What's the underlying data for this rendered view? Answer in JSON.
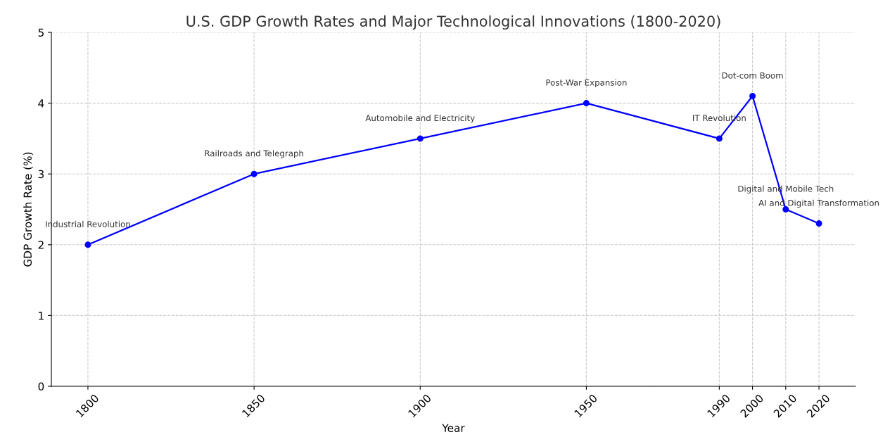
{
  "chart_data": {
    "type": "line",
    "title": "U.S. GDP Growth Rates and Major Technological Innovations (1800-2020)",
    "xlabel": "Year",
    "ylabel": "GDP Growth Rate (%)",
    "x": [
      1800,
      1850,
      1900,
      1950,
      1990,
      2000,
      2010,
      2020
    ],
    "series": [
      {
        "color": "#0000ff",
        "values": [
          2.0,
          3.0,
          3.5,
          4.0,
          3.5,
          4.1,
          2.5,
          2.3
        ]
      }
    ],
    "xlim": [
      1789,
      2031
    ],
    "ylim": [
      0,
      5
    ],
    "xticks": [
      1800,
      1850,
      1900,
      1950,
      1990,
      2000,
      2010,
      2020
    ],
    "yticks": [
      0,
      1,
      2,
      3,
      4,
      5
    ],
    "grid": true,
    "marker": "circle",
    "line_style": "solid",
    "annotations": [
      {
        "text": "Industrial Revolution",
        "x": 1800,
        "y": 2.0
      },
      {
        "text": "Railroads and Telegraph",
        "x": 1850,
        "y": 3.0
      },
      {
        "text": "Automobile and Electricity",
        "x": 1900,
        "y": 3.5
      },
      {
        "text": "Post-War Expansion",
        "x": 1950,
        "y": 4.0
      },
      {
        "text": "IT Revolution",
        "x": 1990,
        "y": 3.5
      },
      {
        "text": "Dot-com Boom",
        "x": 2000,
        "y": 4.1
      },
      {
        "text": "Digital and Mobile Tech",
        "x": 2010,
        "y": 2.5
      },
      {
        "text": "AI and Digital Transformation",
        "x": 2020,
        "y": 2.3
      }
    ]
  }
}
